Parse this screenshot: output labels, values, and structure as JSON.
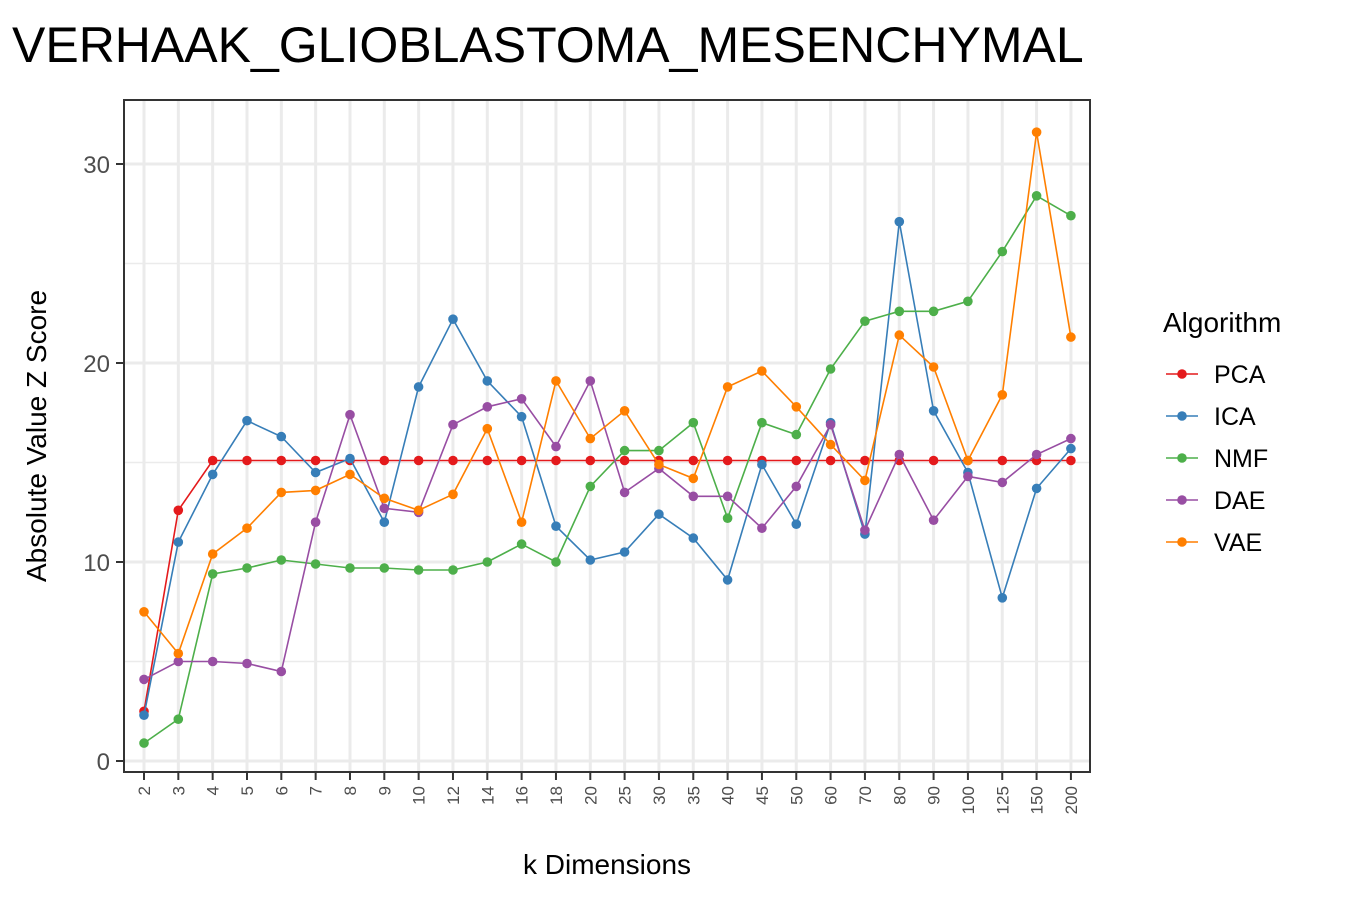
{
  "chart_data": {
    "type": "line",
    "title": "VERHAAK_GLIOBLASTOMA_MESENCHYMAL",
    "xlabel": "k Dimensions",
    "ylabel": "Absolute Value Z Score",
    "categories": [
      "2",
      "3",
      "4",
      "5",
      "6",
      "7",
      "8",
      "9",
      "10",
      "12",
      "14",
      "16",
      "18",
      "20",
      "25",
      "30",
      "35",
      "40",
      "45",
      "50",
      "60",
      "70",
      "80",
      "90",
      "100",
      "125",
      "150",
      "200"
    ],
    "ylim": [
      0,
      33
    ],
    "yticks": [
      0,
      10,
      20,
      30
    ],
    "grid": true,
    "legend": {
      "title": "Algorithm",
      "placement": "right"
    },
    "series": [
      {
        "name": "PCA",
        "color": "#E41A1C",
        "values": [
          2.5,
          12.6,
          15.1,
          15.1,
          15.1,
          15.1,
          15.1,
          15.1,
          15.1,
          15.1,
          15.1,
          15.1,
          15.1,
          15.1,
          15.1,
          15.1,
          15.1,
          15.1,
          15.1,
          15.1,
          15.1,
          15.1,
          15.1,
          15.1,
          15.1,
          15.1,
          15.1,
          15.1
        ]
      },
      {
        "name": "ICA",
        "color": "#377EB8",
        "values": [
          2.3,
          11.0,
          14.4,
          17.1,
          16.3,
          14.5,
          15.2,
          12.0,
          18.8,
          22.2,
          19.1,
          17.3,
          11.8,
          10.1,
          10.5,
          12.4,
          11.2,
          9.1,
          14.9,
          11.9,
          17.0,
          11.4,
          27.1,
          17.6,
          14.5,
          8.2,
          13.7,
          15.7
        ]
      },
      {
        "name": "NMF",
        "color": "#4DAF4A",
        "values": [
          0.9,
          2.1,
          9.4,
          9.7,
          10.1,
          9.9,
          9.7,
          9.7,
          9.6,
          9.6,
          10.0,
          10.9,
          10.0,
          13.8,
          15.6,
          15.6,
          17.0,
          12.2,
          17.0,
          16.4,
          19.7,
          22.1,
          22.6,
          22.6,
          23.1,
          25.6,
          28.4,
          27.4
        ]
      },
      {
        "name": "DAE",
        "color": "#984EA3",
        "values": [
          4.1,
          5.0,
          5.0,
          4.9,
          4.5,
          12.0,
          17.4,
          12.7,
          12.5,
          16.9,
          17.8,
          18.2,
          15.8,
          19.1,
          13.5,
          14.7,
          13.3,
          13.3,
          11.7,
          13.8,
          16.9,
          11.6,
          15.4,
          12.1,
          14.3,
          14.0,
          15.4,
          16.2
        ]
      },
      {
        "name": "VAE",
        "color": "#FF7F00",
        "values": [
          7.5,
          5.4,
          10.4,
          11.7,
          13.5,
          13.6,
          14.4,
          13.2,
          12.6,
          13.4,
          16.7,
          12.0,
          19.1,
          16.2,
          17.6,
          14.9,
          14.2,
          18.8,
          19.6,
          17.8,
          15.9,
          14.1,
          21.4,
          19.8,
          15.1,
          18.4,
          31.6,
          21.3
        ]
      }
    ]
  }
}
